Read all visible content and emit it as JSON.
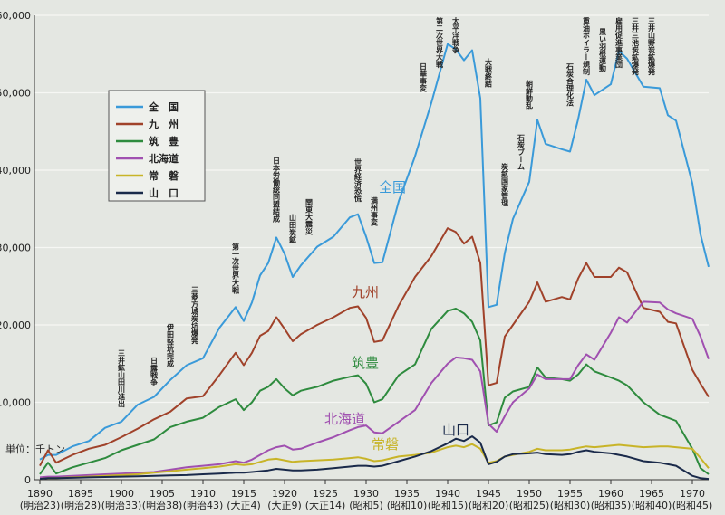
{
  "chart_data": {
    "type": "line",
    "unit_label": "単位：千トン",
    "x": [
      1890,
      1891,
      1892,
      1894,
      1896,
      1898,
      1900,
      1902,
      1904,
      1906,
      1908,
      1910,
      1912,
      1914,
      1915,
      1916,
      1917,
      1918,
      1919,
      1920,
      1921,
      1922,
      1924,
      1926,
      1928,
      1929,
      1930,
      1931,
      1932,
      1934,
      1936,
      1938,
      1940,
      1941,
      1942,
      1943,
      1944,
      1945,
      1946,
      1947,
      1948,
      1950,
      1951,
      1952,
      1954,
      1955,
      1956,
      1957,
      1958,
      1960,
      1961,
      1962,
      1964,
      1966,
      1967,
      1968,
      1970,
      1971,
      1972
    ],
    "xlim": [
      1890,
      1972
    ],
    "xticks": [
      1890,
      1895,
      1900,
      1905,
      1910,
      1915,
      1920,
      1925,
      1930,
      1935,
      1940,
      1945,
      1950,
      1955,
      1960,
      1965,
      1970
    ],
    "xtick_sublabels": [
      "(明治23)",
      "(明治28)",
      "(明治33)",
      "(明治38)",
      "(明治43)",
      "(大正4)",
      "(大正9)",
      "(大正14)",
      "(昭和5)",
      "(昭和10)",
      "(昭和15)",
      "(昭和20)",
      "(昭和25)",
      "(昭和30)",
      "(昭和35)",
      "(昭和40)",
      "(昭和45)"
    ],
    "ylim": [
      0,
      60000
    ],
    "yticks": [
      0,
      {
        "value": 10000,
        "label": "10,000"
      },
      {
        "value": 20000,
        "label": "20,000"
      },
      {
        "value": 30000,
        "label": "30,000"
      },
      {
        "value": 40000,
        "label": "40,000"
      },
      {
        "value": 50000,
        "label": "50,000"
      },
      {
        "value": 60000,
        "label": "60,000"
      }
    ],
    "grid": true,
    "series": [
      {
        "name": "全　国",
        "inline_label": "全国",
        "color": "#3a9ad9",
        "values": [
          2600,
          3200,
          3200,
          4300,
          5000,
          6700,
          7500,
          9700,
          10700,
          12900,
          14800,
          15700,
          19600,
          22300,
          20500,
          22900,
          26400,
          28000,
          31300,
          29200,
          26200,
          27700,
          30100,
          31400,
          33900,
          34300,
          31400,
          28000,
          28100,
          36000,
          41800,
          48700,
          56300,
          55600,
          54200,
          55500,
          49300,
          22300,
          22600,
          29300,
          33700,
          38500,
          46500,
          43400,
          42700,
          42400,
          46600,
          51700,
          49700,
          51100,
          55400,
          54400,
          50800,
          50600,
          47100,
          46400,
          38300,
          31700,
          27500
        ]
      },
      {
        "name": "九　州",
        "inline_label": "九州",
        "color": "#a0422a",
        "values": [
          1800,
          3800,
          2200,
          3200,
          4000,
          4500,
          5500,
          6600,
          7800,
          8800,
          10500,
          10800,
          13500,
          16400,
          14800,
          16400,
          18600,
          19200,
          21000,
          19500,
          17900,
          18800,
          20000,
          21000,
          22200,
          22400,
          20900,
          17800,
          18000,
          22500,
          26200,
          28900,
          32500,
          32000,
          30500,
          31400,
          28000,
          12200,
          12500,
          18500,
          20000,
          23000,
          25500,
          23000,
          23600,
          23300,
          26000,
          28000,
          26200,
          26200,
          27400,
          26800,
          22200,
          21700,
          20400,
          20200,
          14200,
          12400,
          10700
        ]
      },
      {
        "name": "筑　豊",
        "inline_label": "筑豊",
        "color": "#2e8b3e",
        "values": [
          700,
          2200,
          800,
          1600,
          2200,
          2800,
          3800,
          4500,
          5200,
          6800,
          7500,
          8000,
          9400,
          10400,
          9000,
          10000,
          11500,
          12000,
          13000,
          11800,
          10900,
          11500,
          12000,
          12800,
          13300,
          13500,
          12400,
          10000,
          10400,
          13500,
          14900,
          19500,
          21800,
          22100,
          21500,
          20400,
          18000,
          7000,
          7400,
          10600,
          11400,
          12000,
          14500,
          13200,
          13000,
          12800,
          13600,
          14900,
          14000,
          13200,
          12800,
          12200,
          10000,
          8400,
          8000,
          7600,
          4000,
          1500,
          700
        ]
      },
      {
        "name": "北海道",
        "inline_label": "北海道",
        "color": "#a050b0",
        "values": [
          300,
          400,
          400,
          500,
          600,
          700,
          800,
          900,
          1000,
          1300,
          1600,
          1800,
          2000,
          2400,
          2200,
          2600,
          3200,
          3800,
          4200,
          4400,
          3900,
          4000,
          4800,
          5500,
          6400,
          6800,
          7000,
          6100,
          6000,
          7500,
          9000,
          12500,
          15000,
          15800,
          15700,
          15500,
          14000,
          7200,
          6200,
          8200,
          10000,
          11800,
          13600,
          13000,
          13000,
          13000,
          14800,
          16200,
          15500,
          19000,
          21000,
          20300,
          23000,
          22900,
          22000,
          21500,
          20800,
          18500,
          15600
        ]
      },
      {
        "name": "常　磐",
        "inline_label": "常磐",
        "color": "#c8b428",
        "values": [
          100,
          200,
          200,
          300,
          400,
          500,
          600,
          700,
          900,
          1100,
          1300,
          1500,
          1700,
          2000,
          1900,
          2000,
          2300,
          2600,
          2700,
          2500,
          2300,
          2400,
          2500,
          2600,
          2800,
          2900,
          2700,
          2400,
          2500,
          3000,
          3200,
          3500,
          4200,
          4400,
          4200,
          4600,
          4000,
          2200,
          2400,
          3000,
          3200,
          3600,
          4000,
          3800,
          3800,
          3900,
          4100,
          4300,
          4200,
          4400,
          4500,
          4400,
          4200,
          4300,
          4300,
          4200,
          4000,
          2800,
          1500
        ]
      },
      {
        "name": "山　口",
        "inline_label": "山口",
        "color": "#1a2a4a",
        "values": [
          100,
          200,
          200,
          250,
          300,
          350,
          400,
          450,
          500,
          550,
          600,
          700,
          800,
          900,
          900,
          1000,
          1100,
          1200,
          1400,
          1300,
          1200,
          1200,
          1300,
          1500,
          1700,
          1800,
          1800,
          1700,
          1800,
          2400,
          3000,
          3700,
          4700,
          5300,
          5000,
          5600,
          4800,
          2000,
          2300,
          3000,
          3300,
          3400,
          3500,
          3300,
          3200,
          3300,
          3600,
          3800,
          3600,
          3400,
          3200,
          3000,
          2400,
          2200,
          2000,
          1800,
          500,
          200,
          100
        ]
      }
    ],
    "annotations": [
      {
        "x": 1900,
        "text": "三井鉱山田川進出"
      },
      {
        "x": 1904,
        "text": "日露戦争"
      },
      {
        "x": 1906,
        "text": "伊田竪坑完成"
      },
      {
        "x": 1909,
        "text": "三菱方城炭坑爆発"
      },
      {
        "x": 1914,
        "text": "第一次世界大戦"
      },
      {
        "x": 1919,
        "text": "日本労働総同盟結成"
      },
      {
        "x": 1921,
        "text": "山田炭鉱"
      },
      {
        "x": 1923,
        "text": "関東大震災"
      },
      {
        "x": 1929,
        "text": "世界経済恐慌"
      },
      {
        "x": 1931,
        "text": "満州事変"
      },
      {
        "x": 1937,
        "text": "日華事変"
      },
      {
        "x": 1939,
        "text": "第二次世界大戦"
      },
      {
        "x": 1941,
        "text": "太平洋戦争"
      },
      {
        "x": 1945,
        "text": "大戦終結"
      },
      {
        "x": 1947,
        "text": "炭鉱国家管理"
      },
      {
        "x": 1949,
        "text": "石炭ブーム"
      },
      {
        "x": 1950,
        "text": "朝鮮動乱"
      },
      {
        "x": 1955,
        "text": "石炭合理化法"
      },
      {
        "x": 1957,
        "text": "重油ボイラー規制"
      },
      {
        "x": 1959,
        "text": "黒い羽根運動"
      },
      {
        "x": 1961,
        "text": "雇用促進事業団"
      },
      {
        "x": 1963,
        "text": "三井三池炭鉱爆発"
      },
      {
        "x": 1965,
        "text": "三井山野炭鉱爆発"
      }
    ]
  }
}
